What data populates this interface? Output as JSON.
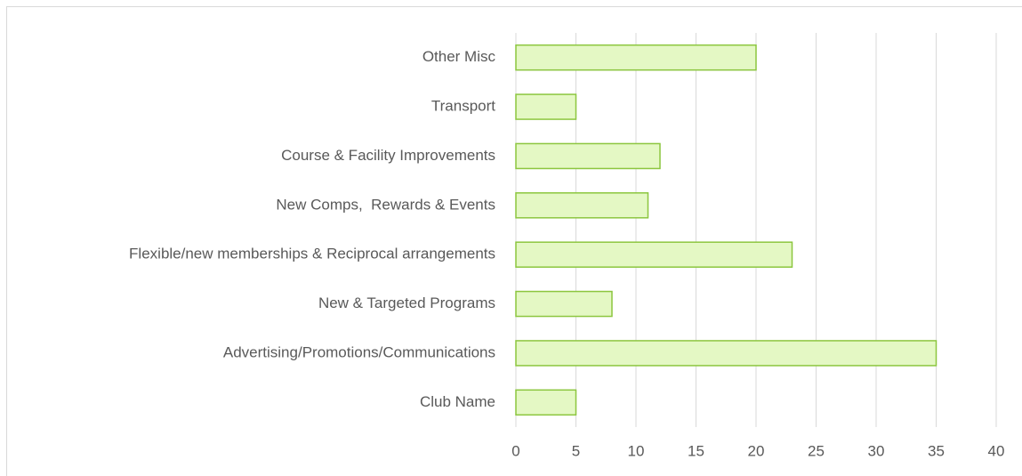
{
  "chart_data": {
    "type": "barh",
    "categories": [
      "Other Misc",
      "Transport",
      "Course & Facility Improvements",
      "New Comps,  Rewards & Events",
      "Flexible/new memberships & Reciprocal arrangements",
      "New & Targeted Programs",
      "Advertising/Promotions/Communications",
      "Club Name"
    ],
    "values": [
      20,
      5,
      12,
      11,
      23,
      8,
      35,
      5
    ],
    "color": "#e4f8c4",
    "edgecolor": "#8cc63f",
    "xlim": [
      0,
      40
    ],
    "xticks": [
      0,
      5,
      10,
      15,
      20,
      25,
      30,
      35,
      40
    ],
    "grid": true
  }
}
